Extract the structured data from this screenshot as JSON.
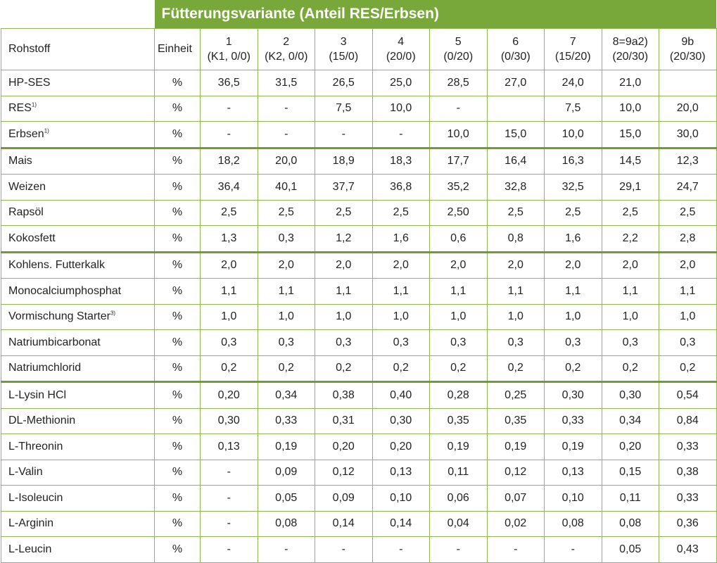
{
  "title": "Fütterungsvariante (Anteil RES/Erbsen)",
  "header": {
    "raw_label": "Rohstoff",
    "unit_label": "Einheit",
    "variants": [
      {
        "num": "1",
        "sub": "(K1, 0/0)"
      },
      {
        "num": "2",
        "sub": "(K2, 0/0)"
      },
      {
        "num": "3",
        "sub": "(15/0)"
      },
      {
        "num": "4",
        "sub": "(20/0)"
      },
      {
        "num": "5",
        "sub": "(0/20)"
      },
      {
        "num": "6",
        "sub": "(0/30)"
      },
      {
        "num": "7",
        "sub": "(15/20)"
      },
      {
        "num": "8=9a2)",
        "sub": "(20/30)"
      },
      {
        "num": "9b",
        "sub": "(20/30)"
      }
    ]
  },
  "rows": [
    {
      "name": "HP-SES",
      "sup": "",
      "unit": "%",
      "values": [
        "36,5",
        "31,5",
        "26,5",
        "25,0",
        "28,5",
        "27,0",
        "24,0",
        "21,0",
        ""
      ]
    },
    {
      "name": "RES",
      "sup": "1)",
      "unit": "%",
      "values": [
        "-",
        "-",
        "7,5",
        "10,0",
        "-",
        "",
        "7,5",
        "10,0",
        "20,0"
      ]
    },
    {
      "name": "Erbsen",
      "sup": "1)",
      "unit": "%",
      "values": [
        "-",
        "-",
        "-",
        "-",
        "10,0",
        "15,0",
        "10,0",
        "15,0",
        "30,0"
      ]
    },
    {
      "name": "Mais",
      "sup": "",
      "unit": "%",
      "values": [
        "18,2",
        "20,0",
        "18,9",
        "18,3",
        "17,7",
        "16,4",
        "16,3",
        "14,5",
        "12,3"
      ]
    },
    {
      "name": "Weizen",
      "sup": "",
      "unit": "%",
      "values": [
        "36,4",
        "40,1",
        "37,7",
        "36,8",
        "35,2",
        "32,8",
        "32,5",
        "29,1",
        "24,7"
      ]
    },
    {
      "name": "Rapsöl",
      "sup": "",
      "unit": "%",
      "values": [
        "2,5",
        "2,5",
        "2,5",
        "2,5",
        "2,50",
        "2,5",
        "2,5",
        "2,5",
        "2,5"
      ]
    },
    {
      "name": "Kokosfett",
      "sup": "",
      "unit": "%",
      "values": [
        "1,3",
        "0,3",
        "1,2",
        "1,6",
        "0,6",
        "0,8",
        "1,6",
        "2,2",
        "2,8"
      ]
    },
    {
      "name": "Kohlens. Futterkalk",
      "sup": "",
      "unit": "%",
      "values": [
        "2,0",
        "2,0",
        "2,0",
        "2,0",
        "2,0",
        "2,0",
        "2,0",
        "2,0",
        "2,0"
      ]
    },
    {
      "name": "Monocalciumphosphat",
      "sup": "",
      "unit": "%",
      "values": [
        "1,1",
        "1,1",
        "1,1",
        "1,1",
        "1,1",
        "1,1",
        "1,1",
        "1,1",
        "1,1"
      ]
    },
    {
      "name": "Vormischung Starter",
      "sup": "3)",
      "unit": "%",
      "values": [
        "1,0",
        "1,0",
        "1,0",
        "1,0",
        "1,0",
        "1,0",
        "1,0",
        "1,0",
        "1,0"
      ]
    },
    {
      "name": "Natriumbicarbonat",
      "sup": "",
      "unit": "%",
      "values": [
        "0,3",
        "0,3",
        "0,3",
        "0,3",
        "0,3",
        "0,3",
        "0,3",
        "0,3",
        "0,3"
      ]
    },
    {
      "name": "Natriumchlorid",
      "sup": "",
      "unit": "%",
      "values": [
        "0,2",
        "0,2",
        "0,2",
        "0,2",
        "0,2",
        "0,2",
        "0,2",
        "0,2",
        "0,2"
      ]
    },
    {
      "name": "L-Lysin HCl",
      "sup": "",
      "unit": "%",
      "values": [
        "0,20",
        "0,34",
        "0,38",
        "0,40",
        "0,28",
        "0,25",
        "0,30",
        "0,30",
        "0,54"
      ]
    },
    {
      "name": "DL-Methionin",
      "sup": "",
      "unit": "%",
      "values": [
        "0,30",
        "0,33",
        "0,31",
        "0,30",
        "0,35",
        "0,35",
        "0,33",
        "0,34",
        "0,84"
      ]
    },
    {
      "name": "L-Threonin",
      "sup": "",
      "unit": "%",
      "values": [
        "0,13",
        "0,19",
        "0,20",
        "0,20",
        "0,19",
        "0,19",
        "0,19",
        "0,20",
        "0,33"
      ]
    },
    {
      "name": "L-Valin",
      "sup": "",
      "unit": "%",
      "values": [
        "-",
        "0,09",
        "0,12",
        "0,13",
        "0,11",
        "0,12",
        "0,13",
        "0,15",
        "0,38"
      ]
    },
    {
      "name": "L-Isoleucin",
      "sup": "",
      "unit": "%",
      "values": [
        "-",
        "0,05",
        "0,09",
        "0,10",
        "0,06",
        "0,07",
        "0,10",
        "0,11",
        "0,33"
      ]
    },
    {
      "name": "L-Arginin",
      "sup": "",
      "unit": "%",
      "values": [
        "-",
        "0,08",
        "0,14",
        "0,14",
        "0,04",
        "0,02",
        "0,08",
        "0,08",
        "0,36"
      ]
    },
    {
      "name": "L-Leucin",
      "sup": "",
      "unit": "%",
      "values": [
        "-",
        "-",
        "-",
        "-",
        "-",
        "-",
        "-",
        "0,05",
        "0,43"
      ]
    }
  ],
  "colors": {
    "accent": "#79a83a",
    "grid": "#8dba4f"
  }
}
